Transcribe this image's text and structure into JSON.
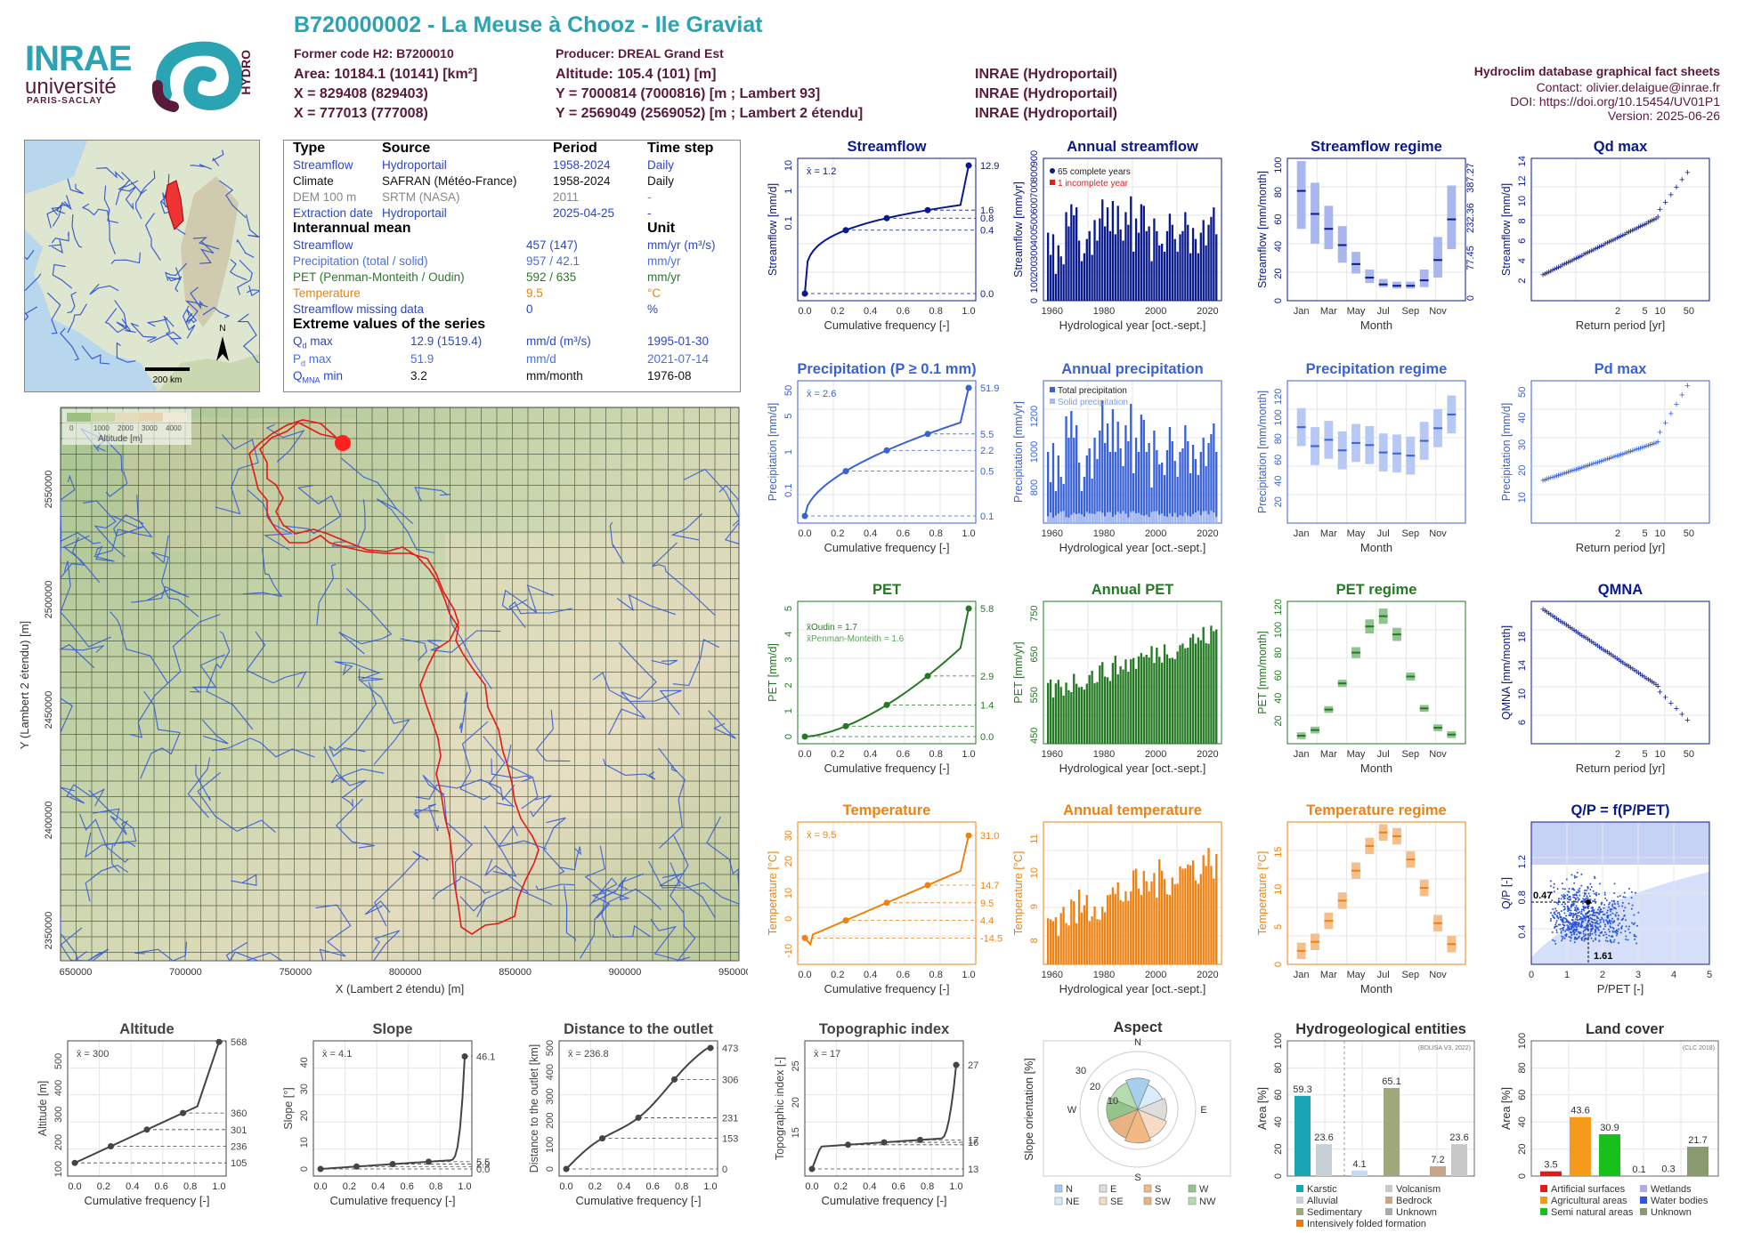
{
  "header": {
    "title": "B720000002 - La Meuse à Chooz - Ile Graviat",
    "former_code": "Former code H2: B7200010",
    "producer": "Producer: DREAL Grand Est",
    "area": "Area: 10184.1 (10141) [km²]",
    "altitude": "Altitude: 105.4 (101) [m]",
    "x": "X = 829408 (829403)",
    "y": "Y = 7000814 (7000816) [m ; Lambert 93]",
    "x2": "X = 777013 (777008)",
    "y2": "Y = 2569049 (2569052) [m ; Lambert 2 étendu]",
    "src1": "INRAE (Hydroportail)",
    "src2": "INRAE (Hydroportail)",
    "src3": "INRAE (Hydroportail)",
    "db_title": "Hydroclim database graphical fact sheets",
    "contact": "Contact: olivier.delaigue@inrae.fr",
    "doi": "DOI: https://doi.org/10.15454/UV01P1",
    "version": "Version: 2025-06-26"
  },
  "logos": {
    "inrae": "INRAE",
    "univ": "université",
    "ps": "PARIS-SACLAY",
    "hydro": "HYDRO"
  },
  "minimap": {
    "north": "N",
    "scale": "200 km"
  },
  "info": {
    "h_type": "Type",
    "h_source": "Source",
    "h_period": "Period",
    "h_step": "Time step",
    "rows": [
      {
        "type": "Streamflow",
        "source": "Hydroportail",
        "period": "1958-2024",
        "step": "Daily"
      },
      {
        "type": "Climate",
        "source": "SAFRAN (Météo-France)",
        "period": "1958-2024",
        "step": "Daily"
      },
      {
        "type": "DEM 100 m",
        "source": "SRTM (NASA)",
        "period": "2011",
        "step": "-"
      },
      {
        "type": "Extraction date",
        "source": "Hydroportail",
        "period": "2025-04-25",
        "step": "-"
      }
    ],
    "h_mean": "Interannual mean",
    "h_unit": "Unit",
    "means": [
      {
        "label": "Streamflow",
        "value": "457 (147)",
        "unit": "mm/yr (m³/s)"
      },
      {
        "label": "Precipitation (total / solid)",
        "value": "957 / 42.1",
        "unit": "mm/yr"
      },
      {
        "label": "PET (Penman-Monteith / Oudin)",
        "value": "592 / 635",
        "unit": "mm/yr"
      },
      {
        "label": "Temperature",
        "value": "9.5",
        "unit": "°C"
      },
      {
        "label": "Streamflow missing data",
        "value": "0",
        "unit": "%"
      }
    ],
    "h_ext": "Extreme values of the series",
    "ext": [
      {
        "l1": "Q",
        "sub": "d",
        "l2": " max",
        "value": "12.9 (1519.4)",
        "unit": "mm/d (m³/s)",
        "date": "1995-01-30"
      },
      {
        "l1": "P",
        "sub": "d",
        "l2": " max",
        "value": "51.9",
        "unit": "mm/d",
        "date": "2021-07-14"
      },
      {
        "l1": "Q",
        "sub": "MNA",
        "l2": " min",
        "value": "3.2",
        "unit": "mm/month",
        "date": "1976-08"
      }
    ]
  },
  "bigmap": {
    "xlabel": "X (Lambert 2 étendu) [m]",
    "ylabel": "Y (Lambert 2 étendu) [m]",
    "xticks": [
      "650000",
      "700000",
      "750000",
      "800000",
      "850000",
      "900000",
      "950000"
    ],
    "yticks": [
      "2550000",
      "2500000",
      "2450000",
      "2400000",
      "2350000"
    ],
    "legend_ticks": [
      "0",
      "1000",
      "2000",
      "3000",
      "4000"
    ],
    "legend_label": "Altitude [m]"
  },
  "colors": {
    "flow": "#0a1a8c",
    "precip": "#3a62d8",
    "pet": "#237a23",
    "temp": "#ef8210",
    "gray": "#444444"
  },
  "chart_data": [
    {
      "id": "streamflow",
      "type": "line",
      "title": "Streamflow",
      "xlabel": "Cumulative frequency [-]",
      "ylabel": "Streamflow [mm/d]",
      "mean": "x̄ = 1.2",
      "right_labels": [
        "12.9",
        "1.6",
        "0.8",
        "0.4",
        "0.0"
      ]
    },
    {
      "id": "annual_streamflow",
      "type": "bar",
      "title": "Annual streamflow",
      "xlabel": "Hydrological year [oct.-sept.]",
      "ylabel": "Streamflow [mm/yr]",
      "legend": [
        "65 complete years",
        "1 incomplete year"
      ],
      "x_start": 1958,
      "values": [
        430,
        290,
        420,
        170,
        350,
        280,
        230,
        560,
        470,
        610,
        540,
        590,
        380,
        250,
        300,
        390,
        440,
        290,
        510,
        380,
        520,
        640,
        470,
        590,
        440,
        630,
        420,
        600,
        450,
        380,
        560,
        480,
        660,
        310,
        520,
        430,
        610,
        600,
        440,
        470,
        250,
        520,
        440,
        350,
        360,
        310,
        440,
        550,
        480,
        390,
        310,
        420,
        440,
        560,
        480,
        300,
        460,
        390,
        300,
        430,
        510,
        350,
        480,
        530,
        590,
        420
      ]
    },
    {
      "id": "streamflow_regime",
      "type": "box",
      "title": "Streamflow regime",
      "xlabel": "Month",
      "ylabel": "Streamflow [mm/month]",
      "ylabel_right": "Streamflow [m³/s]",
      "months": [
        "Jan",
        "Feb",
        "Mar",
        "Apr",
        "May",
        "Jun",
        "Jul",
        "Aug",
        "Sep",
        "Oct",
        "Nov",
        "Dec"
      ],
      "median": [
        81,
        64,
        53,
        41,
        27,
        17,
        12,
        11,
        11,
        15,
        30,
        60
      ],
      "q1": [
        53,
        42,
        38,
        28,
        20,
        13,
        10,
        9,
        9,
        10,
        17,
        38
      ],
      "q3": [
        103,
        87,
        70,
        55,
        36,
        23,
        16,
        14,
        14,
        23,
        47,
        85
      ]
    },
    {
      "id": "qdmax",
      "type": "scatter",
      "title": "Qd max",
      "xlabel": "Return period [yr]",
      "ylabel": "Streamflow [mm/d]"
    },
    {
      "id": "precipitation",
      "type": "line",
      "title": "Precipitation (P ≥ 0.1 mm)",
      "xlabel": "Cumulative frequency [-]",
      "ylabel": "Precipitation [mm/d]",
      "mean": "x̄ = 2.6",
      "right_labels": [
        "51.9",
        "5.5",
        "2.2",
        "0.5",
        "0.1"
      ]
    },
    {
      "id": "annual_precipitation",
      "type": "bar",
      "title": "Annual precipitation",
      "xlabel": "Hydrological year [oct.-sept.]",
      "ylabel": "Precipitation [mm/yr]",
      "legend": [
        "Total precipitation",
        "Solid precipitation"
      ],
      "x_start": 1958,
      "values": [
        1000,
        830,
        1050,
        780,
        980,
        860,
        820,
        1200,
        1080,
        1230,
        1080,
        1150,
        940,
        780,
        860,
        980,
        1020,
        850,
        1080,
        960,
        1120,
        1290,
        1050,
        1160,
        1000,
        1240,
        1000,
        1170,
        1020,
        920,
        1150,
        1060,
        1270,
        880,
        1080,
        1000,
        1210,
        1180,
        1000,
        1050,
        800,
        1120,
        1010,
        930,
        940,
        870,
        1010,
        1140,
        1060,
        950,
        860,
        1000,
        1020,
        1150,
        1060,
        880,
        1040,
        960,
        870,
        1000,
        1080,
        920,
        1050,
        1100,
        1160,
        1000
      ]
    },
    {
      "id": "precipitation_regime",
      "type": "box",
      "title": "Precipitation regime",
      "xlabel": "Month",
      "ylabel": "Precipitation [mm/month]",
      "months": [
        "Jan",
        "Feb",
        "Mar",
        "Apr",
        "May",
        "Jun",
        "Jul",
        "Aug",
        "Sep",
        "Oct",
        "Nov",
        "Dec"
      ],
      "median": [
        91,
        73,
        79,
        69,
        76,
        74,
        67,
        66,
        64,
        78,
        90,
        103
      ]
    },
    {
      "id": "pdmax",
      "type": "scatter",
      "title": "Pd max",
      "xlabel": "Return period [yr]",
      "ylabel": "Precipitation [mm/d]"
    },
    {
      "id": "pet",
      "type": "line",
      "title": "PET",
      "xlabel": "Cumulative frequency [-]",
      "ylabel": "PET [mm/d]",
      "mean1": "x̄Oudin = 1.7",
      "mean2": "x̄Penman-Monteith = 1.6",
      "right_labels": [
        "5.8",
        "2.9",
        "1.4",
        "0.0"
      ]
    },
    {
      "id": "annual_pet",
      "type": "bar",
      "title": "Annual PET",
      "xlabel": "Hydrological year [oct.-sept.]",
      "ylabel": "PET [mm/yr]",
      "x_start": 1958
    },
    {
      "id": "pet_regime",
      "type": "box",
      "title": "PET regime",
      "xlabel": "Month",
      "ylabel": "PET [mm/month]",
      "months": [
        "Jan",
        "Feb",
        "Mar",
        "Apr",
        "May",
        "Jun",
        "Jul",
        "Aug",
        "Sep",
        "Oct",
        "Nov",
        "Dec"
      ],
      "median": [
        7,
        12,
        30,
        53,
        80,
        103,
        112,
        96,
        59,
        31,
        14,
        8
      ]
    },
    {
      "id": "qmna",
      "type": "scatter",
      "title": "QMNA",
      "xlabel": "Return period [yr]",
      "ylabel": "QMNA [mm/month]"
    },
    {
      "id": "temperature",
      "type": "line",
      "title": "Temperature",
      "xlabel": "Cumulative frequency [-]",
      "ylabel": "Temperature [°C]",
      "mean": "x̄ = 9.5",
      "right_labels": [
        "31.0",
        "14.7",
        "9.5",
        "4.4",
        "-14.5"
      ]
    },
    {
      "id": "annual_temperature",
      "type": "bar",
      "title": "Annual temperature",
      "xlabel": "Hydrological year [oct.-sept.]",
      "ylabel": "Temperature [°C]",
      "x_start": 1958
    },
    {
      "id": "temperature_regime",
      "type": "box",
      "title": "Temperature regime",
      "xlabel": "Month",
      "ylabel": "Temperature [°C]",
      "months": [
        "Jan",
        "Feb",
        "Mar",
        "Apr",
        "May",
        "Jun",
        "Jul",
        "Aug",
        "Sep",
        "Oct",
        "Nov",
        "Dec"
      ],
      "median": [
        1.8,
        3.0,
        5.8,
        8.5,
        12.5,
        15.8,
        17.6,
        17.1,
        14.0,
        10.2,
        5.5,
        2.7
      ]
    },
    {
      "id": "budyko",
      "type": "scatter",
      "title": "Q/P = f(P/PET)",
      "xlabel": "P/PET [-]",
      "ylabel": "Q/P [-]",
      "label_qp": "0.47",
      "label_ppet": "1.61"
    },
    {
      "id": "altitude",
      "type": "line",
      "title": "Altitude",
      "xlabel": "Cumulative frequency [-]",
      "ylabel": "Altitude [m]",
      "mean": "x̄ = 300",
      "right_labels": [
        "568",
        "360",
        "301",
        "236",
        "105"
      ]
    },
    {
      "id": "slope",
      "type": "line",
      "title": "Slope",
      "xlabel": "Cumulative frequency [-]",
      "ylabel": "Slope [°]",
      "mean": "x̄ = 4.1",
      "right_labels": [
        "46.1",
        "5.5",
        "2.9",
        "0.0"
      ]
    },
    {
      "id": "distance",
      "type": "line",
      "title": "Distance to the outlet",
      "xlabel": "Cumulative frequency [-]",
      "ylabel": "Distance to the outlet [km]",
      "mean": "x̄ = 236.8",
      "right_labels": [
        "473",
        "306",
        "231",
        "153",
        "0"
      ]
    },
    {
      "id": "topo",
      "type": "line",
      "title": "Topographic index",
      "xlabel": "Cumulative frequency [-]",
      "ylabel": "Topographic index [-]",
      "mean": "x̄ = 17",
      "right_labels": [
        "27",
        "17",
        "16",
        "13"
      ]
    },
    {
      "id": "aspect",
      "type": "pie",
      "title": "Aspect",
      "ylabel": "Slope orientation [%]",
      "categories": [
        "N",
        "NE",
        "E",
        "SE",
        "S",
        "SW",
        "W",
        "NW"
      ],
      "values": [
        13,
        11,
        12,
        13,
        14,
        13,
        13,
        12
      ],
      "legend": [
        "N",
        "E",
        "S",
        "W",
        "NE",
        "SE",
        "SW",
        "NW"
      ]
    },
    {
      "id": "hydrogeo",
      "type": "bar",
      "title": "Hydrogeological entities",
      "ylabel": "Area [%]",
      "note": "(BDLISA V3, 2022)",
      "categories": [
        "Karstic",
        "Alluvial",
        "Sedimentary",
        "Bedrock",
        "Volcanism",
        "Unknown",
        "Intensively folded formation"
      ],
      "labels": [
        "59.3",
        "23.6",
        "4.1",
        "65.1",
        "7.2",
        "23.6"
      ],
      "legend": [
        "Karstic",
        "Alluvial",
        "Sedimentary",
        "Intensively folded formation",
        "Volcanism",
        "Bedrock",
        "Unknown"
      ]
    },
    {
      "id": "landcover",
      "type": "bar",
      "title": "Land cover",
      "ylabel": "Area [%]",
      "note": "(CLC 2018)",
      "labels": [
        "3.5",
        "43.6",
        "30.9",
        "0.1",
        "0.3",
        "21.7"
      ],
      "values": [
        3.5,
        43.6,
        30.9,
        0.1,
        0.3,
        21.7
      ],
      "legend": [
        "Artificial surfaces",
        "Agricultural areas",
        "Semi natural areas",
        "Wetlands",
        "Water bodies",
        "Unknown"
      ]
    }
  ]
}
